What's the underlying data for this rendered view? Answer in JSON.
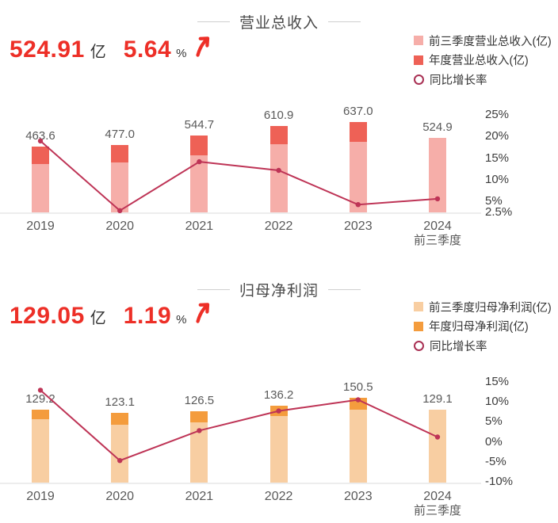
{
  "page_background": "#ffffff",
  "accent_red": "#ed2f27",
  "chart_data": [
    {
      "type": "bar-line-combo",
      "title": "营业总收入",
      "headline": {
        "value": "524.91",
        "unit": "亿",
        "growth": "5.64",
        "growth_unit": "%",
        "arrow_icon": "up-arrow"
      },
      "categories": [
        "2019",
        "2020",
        "2021",
        "2022",
        "2023",
        "2024"
      ],
      "last_category_suffix": "前三季度",
      "series": [
        {
          "name": "前三季度营业总收入(亿)",
          "type": "bar",
          "color": "#f6aea9",
          "values": [
            339,
            353,
            404,
            479,
            497,
            524.9
          ]
        },
        {
          "name": "年度营业总收入(亿)",
          "type": "bar",
          "color": "#ee6156",
          "values": [
            463.6,
            477.0,
            544.7,
            610.9,
            637.0,
            null
          ]
        },
        {
          "name": "同比增长率",
          "type": "line",
          "color": "#be3456",
          "ring_color": "#a93154",
          "unit": "%",
          "values": [
            19.0,
            2.9,
            14.2,
            12.2,
            4.3,
            5.64
          ]
        }
      ],
      "bar_value_labels": [
        "463.6",
        "477.0",
        "544.7",
        "610.9",
        "637.0",
        "524.9"
      ],
      "y2_axis": {
        "labels": [
          "25%",
          "20%",
          "15%",
          "10%",
          "5%",
          "2.5%"
        ],
        "values": [
          25,
          20,
          15,
          10,
          5,
          2.5
        ]
      }
    },
    {
      "type": "bar-line-combo",
      "title": "归母净利润",
      "headline": {
        "value": "129.05",
        "unit": "亿",
        "growth": "1.19",
        "growth_unit": "%",
        "arrow_icon": "up-arrow"
      },
      "categories": [
        "2019",
        "2020",
        "2021",
        "2022",
        "2023",
        "2024"
      ],
      "last_category_suffix": "前三季度",
      "series": [
        {
          "name": "前三季度归母净利润(亿)",
          "type": "bar",
          "color": "#f8cea2",
          "values": [
            112,
            102,
            107,
            118,
            128.6,
            129.1
          ]
        },
        {
          "name": "年度归母净利润(亿)",
          "type": "bar",
          "color": "#f49c3d",
          "values": [
            129.2,
            123.1,
            126.5,
            136.2,
            150.5,
            null
          ]
        },
        {
          "name": "同比增长率",
          "type": "line",
          "color": "#be3456",
          "ring_color": "#a93154",
          "unit": "%",
          "values": [
            12.9,
            -4.7,
            2.8,
            7.7,
            10.5,
            1.19
          ]
        }
      ],
      "bar_value_labels": [
        "129.2",
        "123.1",
        "126.5",
        "136.2",
        "150.5",
        "129.1"
      ],
      "y2_axis": {
        "labels": [
          "15%",
          "10%",
          "5%",
          "0%",
          "-5%",
          "-10%"
        ],
        "values": [
          15,
          10,
          5,
          0,
          -5,
          -10
        ]
      }
    }
  ]
}
